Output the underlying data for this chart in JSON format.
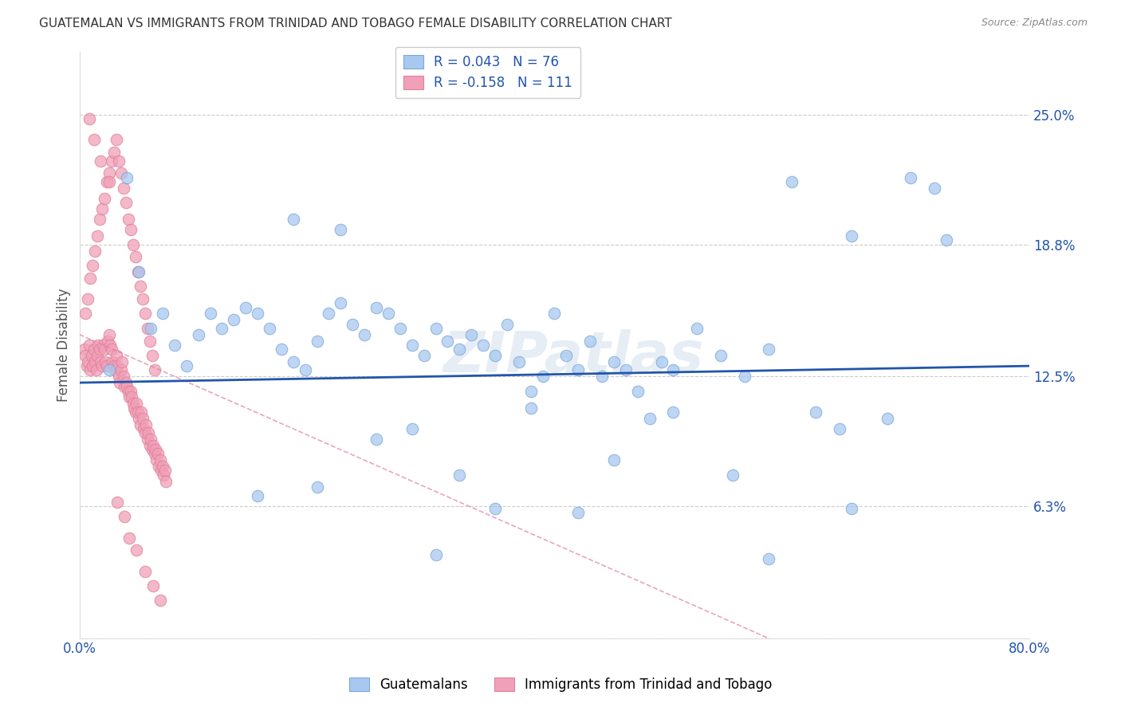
{
  "title": "GUATEMALAN VS IMMIGRANTS FROM TRINIDAD AND TOBAGO FEMALE DISABILITY CORRELATION CHART",
  "source": "Source: ZipAtlas.com",
  "ylabel": "Female Disability",
  "xlim": [
    0.0,
    0.8
  ],
  "ylim": [
    0.0,
    0.28
  ],
  "yticks": [
    0.0,
    0.063,
    0.125,
    0.188,
    0.25
  ],
  "ytick_labels": [
    "",
    "6.3%",
    "12.5%",
    "18.8%",
    "25.0%"
  ],
  "grid_color": "#cccccc",
  "background_color": "#ffffff",
  "blue_color": "#a8c8f0",
  "pink_color": "#f0a0b8",
  "blue_line_color": "#2255aa",
  "pink_line_color": "#e080a0",
  "legend_r1": "R = 0.043",
  "legend_n1": "N = 76",
  "legend_r2": "R = -0.158",
  "legend_n2": "N = 111",
  "legend_label1": "Guatemalans",
  "legend_label2": "Immigrants from Trinidad and Tobago",
  "watermark": "ZIPatlas",
  "blue_scatter_x": [
    0.025,
    0.04,
    0.05,
    0.06,
    0.07,
    0.08,
    0.09,
    0.1,
    0.11,
    0.12,
    0.13,
    0.14,
    0.15,
    0.16,
    0.17,
    0.18,
    0.19,
    0.2,
    0.21,
    0.22,
    0.23,
    0.24,
    0.25,
    0.26,
    0.27,
    0.28,
    0.29,
    0.3,
    0.31,
    0.32,
    0.33,
    0.34,
    0.35,
    0.36,
    0.37,
    0.38,
    0.39,
    0.4,
    0.41,
    0.42,
    0.43,
    0.44,
    0.45,
    0.46,
    0.47,
    0.48,
    0.49,
    0.5,
    0.52,
    0.54,
    0.56,
    0.58,
    0.6,
    0.62,
    0.64,
    0.65,
    0.68,
    0.7,
    0.72,
    0.73,
    0.18,
    0.22,
    0.28,
    0.35,
    0.42,
    0.5,
    0.58,
    0.65,
    0.3,
    0.38,
    0.25,
    0.45,
    0.32,
    0.2,
    0.15,
    0.55
  ],
  "blue_scatter_y": [
    0.128,
    0.22,
    0.175,
    0.148,
    0.155,
    0.14,
    0.13,
    0.145,
    0.155,
    0.148,
    0.152,
    0.158,
    0.155,
    0.148,
    0.138,
    0.132,
    0.128,
    0.142,
    0.155,
    0.16,
    0.15,
    0.145,
    0.158,
    0.155,
    0.148,
    0.14,
    0.135,
    0.148,
    0.142,
    0.138,
    0.145,
    0.14,
    0.135,
    0.15,
    0.132,
    0.118,
    0.125,
    0.155,
    0.135,
    0.128,
    0.142,
    0.125,
    0.132,
    0.128,
    0.118,
    0.105,
    0.132,
    0.128,
    0.148,
    0.135,
    0.125,
    0.138,
    0.218,
    0.108,
    0.1,
    0.192,
    0.105,
    0.22,
    0.215,
    0.19,
    0.2,
    0.195,
    0.1,
    0.062,
    0.06,
    0.108,
    0.038,
    0.062,
    0.04,
    0.11,
    0.095,
    0.085,
    0.078,
    0.072,
    0.068,
    0.078
  ],
  "pink_scatter_x": [
    0.004,
    0.005,
    0.006,
    0.007,
    0.008,
    0.009,
    0.01,
    0.011,
    0.012,
    0.013,
    0.014,
    0.015,
    0.016,
    0.017,
    0.018,
    0.019,
    0.02,
    0.021,
    0.022,
    0.023,
    0.024,
    0.025,
    0.026,
    0.027,
    0.028,
    0.029,
    0.03,
    0.031,
    0.032,
    0.033,
    0.034,
    0.035,
    0.036,
    0.037,
    0.038,
    0.039,
    0.04,
    0.041,
    0.042,
    0.043,
    0.044,
    0.045,
    0.046,
    0.047,
    0.048,
    0.049,
    0.05,
    0.051,
    0.052,
    0.053,
    0.054,
    0.055,
    0.056,
    0.057,
    0.058,
    0.059,
    0.06,
    0.061,
    0.062,
    0.063,
    0.064,
    0.065,
    0.066,
    0.067,
    0.068,
    0.069,
    0.07,
    0.071,
    0.072,
    0.073,
    0.005,
    0.007,
    0.009,
    0.011,
    0.013,
    0.015,
    0.017,
    0.019,
    0.021,
    0.023,
    0.025,
    0.027,
    0.029,
    0.031,
    0.033,
    0.035,
    0.037,
    0.039,
    0.041,
    0.043,
    0.045,
    0.047,
    0.049,
    0.051,
    0.053,
    0.055,
    0.057,
    0.059,
    0.061,
    0.063,
    0.008,
    0.012,
    0.018,
    0.025,
    0.032,
    0.038,
    0.042,
    0.048,
    0.055,
    0.062,
    0.068
  ],
  "pink_scatter_y": [
    0.138,
    0.135,
    0.13,
    0.132,
    0.14,
    0.128,
    0.135,
    0.13,
    0.138,
    0.132,
    0.128,
    0.135,
    0.14,
    0.138,
    0.132,
    0.13,
    0.14,
    0.138,
    0.132,
    0.13,
    0.142,
    0.145,
    0.14,
    0.138,
    0.132,
    0.13,
    0.128,
    0.135,
    0.13,
    0.125,
    0.122,
    0.128,
    0.132,
    0.125,
    0.12,
    0.122,
    0.12,
    0.118,
    0.115,
    0.118,
    0.115,
    0.112,
    0.11,
    0.108,
    0.112,
    0.108,
    0.105,
    0.102,
    0.108,
    0.105,
    0.1,
    0.098,
    0.102,
    0.095,
    0.098,
    0.092,
    0.095,
    0.09,
    0.092,
    0.088,
    0.09,
    0.085,
    0.088,
    0.082,
    0.085,
    0.08,
    0.082,
    0.078,
    0.08,
    0.075,
    0.155,
    0.162,
    0.172,
    0.178,
    0.185,
    0.192,
    0.2,
    0.205,
    0.21,
    0.218,
    0.222,
    0.228,
    0.232,
    0.238,
    0.228,
    0.222,
    0.215,
    0.208,
    0.2,
    0.195,
    0.188,
    0.182,
    0.175,
    0.168,
    0.162,
    0.155,
    0.148,
    0.142,
    0.135,
    0.128,
    0.248,
    0.238,
    0.228,
    0.218,
    0.065,
    0.058,
    0.048,
    0.042,
    0.032,
    0.025,
    0.018
  ]
}
